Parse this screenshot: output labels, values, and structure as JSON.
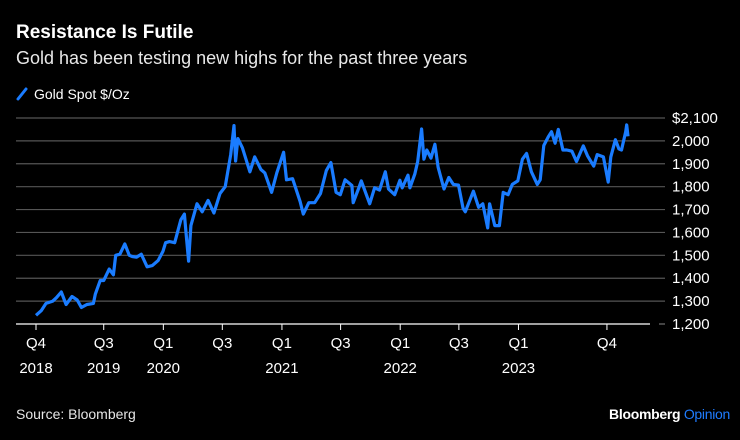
{
  "title": "Resistance Is Futile",
  "subtitle": "Gold has been testing new highs for the past three years",
  "source": "Source: Bloomberg",
  "brand": {
    "name": "Bloomberg",
    "suffix": "Opinion"
  },
  "colors": {
    "background": "#000000",
    "series": "#1a7cff",
    "grid": "#555555",
    "axis": "#ffffff",
    "brand_accent": "#1f7cff"
  },
  "legend": {
    "icon": "slash-line-icon",
    "label": "Gold Spot $/Oz",
    "placement": "top-left"
  },
  "chart_data": {
    "type": "line",
    "title": "Resistance Is Futile",
    "subtitle": "Gold has been testing new highs for the past three years",
    "xlabel": "",
    "ylabel": "",
    "xlim": [
      "2018-12-04",
      "2023-12-05"
    ],
    "ylim": [
      1200,
      2100
    ],
    "grid": true,
    "y_axis_side": "right",
    "y_ticks": [
      {
        "value": 2100,
        "label": "$2,100"
      },
      {
        "value": 2000,
        "label": "2,000"
      },
      {
        "value": 1900,
        "label": "1,900"
      },
      {
        "value": 1800,
        "label": "1,800"
      },
      {
        "value": 1700,
        "label": "1,700"
      },
      {
        "value": 1600,
        "label": "1,600"
      },
      {
        "value": 1500,
        "label": "1,500"
      },
      {
        "value": 1400,
        "label": "1,400"
      },
      {
        "value": 1300,
        "label": "1,300"
      },
      {
        "value": 1200,
        "label": "1,200"
      }
    ],
    "x_ticks": [
      {
        "date": "2018-12-04",
        "quarter": "Q4",
        "year": "2018"
      },
      {
        "date": "2019-07-01",
        "quarter": "Q3",
        "year": "2019"
      },
      {
        "date": "2020-01-01",
        "quarter": "Q1",
        "year": "2020"
      },
      {
        "date": "2020-07-01",
        "quarter": "Q3",
        "year": ""
      },
      {
        "date": "2021-01-01",
        "quarter": "Q1",
        "year": "2021"
      },
      {
        "date": "2021-07-01",
        "quarter": "Q3",
        "year": ""
      },
      {
        "date": "2022-01-01",
        "quarter": "Q1",
        "year": "2022"
      },
      {
        "date": "2022-07-01",
        "quarter": "Q3",
        "year": ""
      },
      {
        "date": "2023-01-01",
        "quarter": "Q1",
        "year": "2023"
      },
      {
        "date": "2023-10-01",
        "quarter": "Q4",
        "year": ""
      }
    ],
    "series": [
      {
        "name": "Gold Spot $/Oz",
        "points": [
          [
            "2018-12-04",
            1238
          ],
          [
            "2018-12-20",
            1258
          ],
          [
            "2019-01-04",
            1290
          ],
          [
            "2019-01-25",
            1300
          ],
          [
            "2019-02-05",
            1315
          ],
          [
            "2019-02-20",
            1340
          ],
          [
            "2019-03-07",
            1285
          ],
          [
            "2019-03-25",
            1320
          ],
          [
            "2019-04-10",
            1305
          ],
          [
            "2019-04-23",
            1272
          ],
          [
            "2019-05-10",
            1285
          ],
          [
            "2019-05-30",
            1290
          ],
          [
            "2019-06-05",
            1330
          ],
          [
            "2019-06-20",
            1390
          ],
          [
            "2019-07-01",
            1390
          ],
          [
            "2019-07-18",
            1440
          ],
          [
            "2019-07-31",
            1415
          ],
          [
            "2019-08-07",
            1500
          ],
          [
            "2019-08-20",
            1505
          ],
          [
            "2019-09-04",
            1550
          ],
          [
            "2019-09-18",
            1500
          ],
          [
            "2019-09-27",
            1495
          ],
          [
            "2019-10-10",
            1492
          ],
          [
            "2019-10-25",
            1505
          ],
          [
            "2019-11-12",
            1450
          ],
          [
            "2019-11-28",
            1455
          ],
          [
            "2019-12-16",
            1478
          ],
          [
            "2019-12-31",
            1518
          ],
          [
            "2020-01-08",
            1555
          ],
          [
            "2020-01-20",
            1560
          ],
          [
            "2020-02-05",
            1555
          ],
          [
            "2020-02-24",
            1655
          ],
          [
            "2020-03-06",
            1680
          ],
          [
            "2020-03-12",
            1585
          ],
          [
            "2020-03-19",
            1475
          ],
          [
            "2020-03-26",
            1630
          ],
          [
            "2020-04-14",
            1725
          ],
          [
            "2020-04-30",
            1690
          ],
          [
            "2020-05-18",
            1740
          ],
          [
            "2020-06-05",
            1685
          ],
          [
            "2020-06-24",
            1770
          ],
          [
            "2020-07-10",
            1800
          ],
          [
            "2020-07-27",
            1940
          ],
          [
            "2020-08-06",
            2067
          ],
          [
            "2020-08-11",
            1912
          ],
          [
            "2020-08-18",
            2010
          ],
          [
            "2020-09-01",
            1970
          ],
          [
            "2020-09-24",
            1865
          ],
          [
            "2020-10-09",
            1930
          ],
          [
            "2020-10-28",
            1875
          ],
          [
            "2020-11-09",
            1860
          ],
          [
            "2020-11-30",
            1775
          ],
          [
            "2020-12-16",
            1860
          ],
          [
            "2021-01-06",
            1950
          ],
          [
            "2021-01-15",
            1830
          ],
          [
            "2021-02-03",
            1835
          ],
          [
            "2021-02-26",
            1735
          ],
          [
            "2021-03-08",
            1680
          ],
          [
            "2021-03-25",
            1730
          ],
          [
            "2021-04-12",
            1730
          ],
          [
            "2021-04-30",
            1770
          ],
          [
            "2021-05-18",
            1870
          ],
          [
            "2021-06-01",
            1905
          ],
          [
            "2021-06-17",
            1775
          ],
          [
            "2021-06-30",
            1765
          ],
          [
            "2021-07-15",
            1830
          ],
          [
            "2021-08-05",
            1805
          ],
          [
            "2021-08-09",
            1730
          ],
          [
            "2021-08-25",
            1790
          ],
          [
            "2021-09-03",
            1825
          ],
          [
            "2021-09-29",
            1725
          ],
          [
            "2021-10-14",
            1795
          ],
          [
            "2021-10-29",
            1785
          ],
          [
            "2021-11-16",
            1865
          ],
          [
            "2021-11-26",
            1790
          ],
          [
            "2021-12-15",
            1765
          ],
          [
            "2021-12-31",
            1828
          ],
          [
            "2022-01-07",
            1795
          ],
          [
            "2022-01-25",
            1850
          ],
          [
            "2022-01-31",
            1795
          ],
          [
            "2022-02-15",
            1855
          ],
          [
            "2022-02-24",
            1910
          ],
          [
            "2022-03-08",
            2052
          ],
          [
            "2022-03-15",
            1920
          ],
          [
            "2022-03-24",
            1960
          ],
          [
            "2022-04-06",
            1925
          ],
          [
            "2022-04-18",
            1985
          ],
          [
            "2022-04-28",
            1885
          ],
          [
            "2022-05-16",
            1790
          ],
          [
            "2022-05-31",
            1840
          ],
          [
            "2022-06-14",
            1810
          ],
          [
            "2022-06-30",
            1807
          ],
          [
            "2022-07-14",
            1705
          ],
          [
            "2022-07-21",
            1690
          ],
          [
            "2022-08-15",
            1780
          ],
          [
            "2022-08-31",
            1710
          ],
          [
            "2022-09-13",
            1725
          ],
          [
            "2022-09-28",
            1620
          ],
          [
            "2022-10-04",
            1725
          ],
          [
            "2022-10-20",
            1630
          ],
          [
            "2022-11-03",
            1630
          ],
          [
            "2022-11-15",
            1775
          ],
          [
            "2022-11-30",
            1765
          ],
          [
            "2022-12-13",
            1810
          ],
          [
            "2022-12-30",
            1825
          ],
          [
            "2023-01-13",
            1920
          ],
          [
            "2023-01-26",
            1945
          ],
          [
            "2023-02-10",
            1865
          ],
          [
            "2023-02-28",
            1810
          ],
          [
            "2023-03-09",
            1830
          ],
          [
            "2023-03-20",
            1980
          ],
          [
            "2023-04-04",
            2020
          ],
          [
            "2023-04-13",
            2040
          ],
          [
            "2023-04-24",
            1990
          ],
          [
            "2023-05-04",
            2050
          ],
          [
            "2023-05-18",
            1960
          ],
          [
            "2023-05-30",
            1960
          ],
          [
            "2023-06-15",
            1955
          ],
          [
            "2023-06-29",
            1910
          ],
          [
            "2023-07-20",
            1978
          ],
          [
            "2023-08-02",
            1935
          ],
          [
            "2023-08-21",
            1890
          ],
          [
            "2023-09-01",
            1940
          ],
          [
            "2023-09-20",
            1930
          ],
          [
            "2023-10-05",
            1820
          ],
          [
            "2023-10-13",
            1930
          ],
          [
            "2023-10-27",
            2005
          ],
          [
            "2023-11-07",
            1965
          ],
          [
            "2023-11-15",
            1960
          ],
          [
            "2023-11-28",
            2040
          ],
          [
            "2023-12-01",
            2070
          ],
          [
            "2023-12-05",
            2020
          ]
        ]
      }
    ]
  }
}
